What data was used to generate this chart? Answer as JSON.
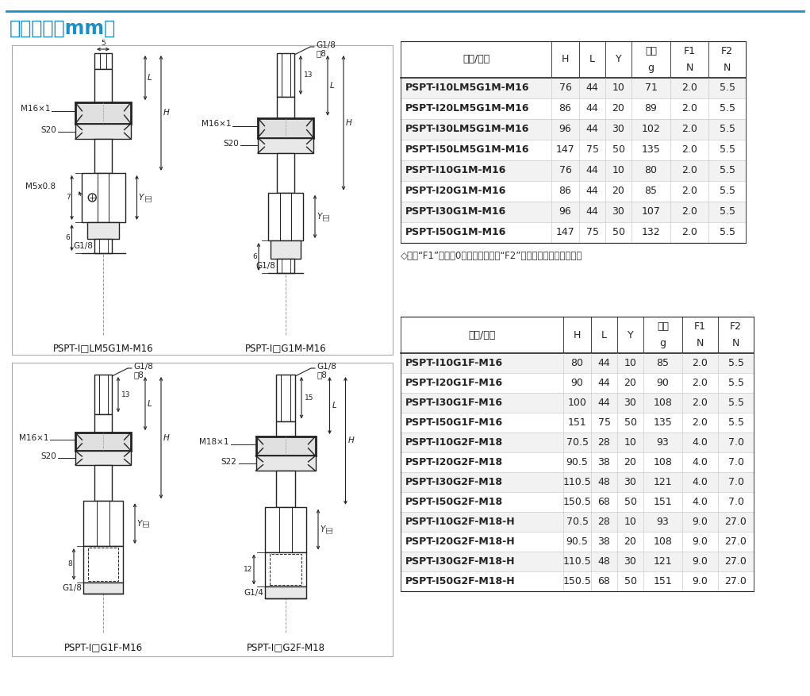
{
  "title": "尺寸规格（mm）",
  "title_color": "#1b8ec8",
  "title_line_color": "#1b8ec8",
  "bg_color": "#ffffff",
  "table1_rows": [
    [
      "PSPT-I10LM5G1M-M16",
      "76",
      "44",
      "10",
      "71",
      "2.0",
      "5.5"
    ],
    [
      "PSPT-I20LM5G1M-M16",
      "86",
      "44",
      "20",
      "89",
      "2.0",
      "5.5"
    ],
    [
      "PSPT-I30LM5G1M-M16",
      "96",
      "44",
      "30",
      "102",
      "2.0",
      "5.5"
    ],
    [
      "PSPT-I50LM5G1M-M16",
      "147",
      "75",
      "50",
      "135",
      "2.0",
      "5.5"
    ],
    [
      "PSPT-I10G1M-M16",
      "76",
      "44",
      "10",
      "80",
      "2.0",
      "5.5"
    ],
    [
      "PSPT-I20G1M-M16",
      "86",
      "44",
      "20",
      "85",
      "2.0",
      "5.5"
    ],
    [
      "PSPT-I30G1M-M16",
      "96",
      "44",
      "30",
      "107",
      "2.0",
      "5.5"
    ],
    [
      "PSPT-I50G1M-M16",
      "147",
      "75",
      "50",
      "132",
      "2.0",
      "5.5"
    ]
  ],
  "table1_note": "◇注：“F1”表示为0行程弹簧弹力，“F2”表示行程最大弹簧弹力。",
  "table2_rows": [
    [
      "PSPT-I10G1F-M16",
      "80",
      "44",
      "10",
      "85",
      "2.0",
      "5.5"
    ],
    [
      "PSPT-I20G1F-M16",
      "90",
      "44",
      "20",
      "90",
      "2.0",
      "5.5"
    ],
    [
      "PSPT-I30G1F-M16",
      "100",
      "44",
      "30",
      "108",
      "2.0",
      "5.5"
    ],
    [
      "PSPT-I50G1F-M16",
      "151",
      "75",
      "50",
      "135",
      "2.0",
      "5.5"
    ],
    [
      "PSPT-I10G2F-M18",
      "70.5",
      "28",
      "10",
      "93",
      "4.0",
      "7.0"
    ],
    [
      "PSPT-I20G2F-M18",
      "90.5",
      "38",
      "20",
      "108",
      "4.0",
      "7.0"
    ],
    [
      "PSPT-I30G2F-M18",
      "110.5",
      "48",
      "30",
      "121",
      "4.0",
      "7.0"
    ],
    [
      "PSPT-I50G2F-M18",
      "150.5",
      "68",
      "50",
      "151",
      "4.0",
      "7.0"
    ],
    [
      "PSPT-I10G2F-M18-H",
      "70.5",
      "28",
      "10",
      "93",
      "9.0",
      "27.0"
    ],
    [
      "PSPT-I20G2F-M18-H",
      "90.5",
      "38",
      "20",
      "108",
      "9.0",
      "27.0"
    ],
    [
      "PSPT-I30G2F-M18-H",
      "110.5",
      "48",
      "30",
      "121",
      "9.0",
      "27.0"
    ],
    [
      "PSPT-I50G2F-M18-H",
      "150.5",
      "68",
      "50",
      "151",
      "9.0",
      "27.0"
    ]
  ],
  "col_headers": [
    "型号/尺寸",
    "H",
    "L",
    "Y",
    "单重",
    "F1",
    "F2"
  ],
  "col_sub": [
    "",
    "",
    "",
    "",
    "g",
    "N",
    "N"
  ],
  "model_labels": [
    "PSPT-I□LM5G1M-M16",
    "PSPT-I□G1M-M16",
    "PSPT-I□G1F-M16",
    "PSPT-I□G2F-M18"
  ]
}
